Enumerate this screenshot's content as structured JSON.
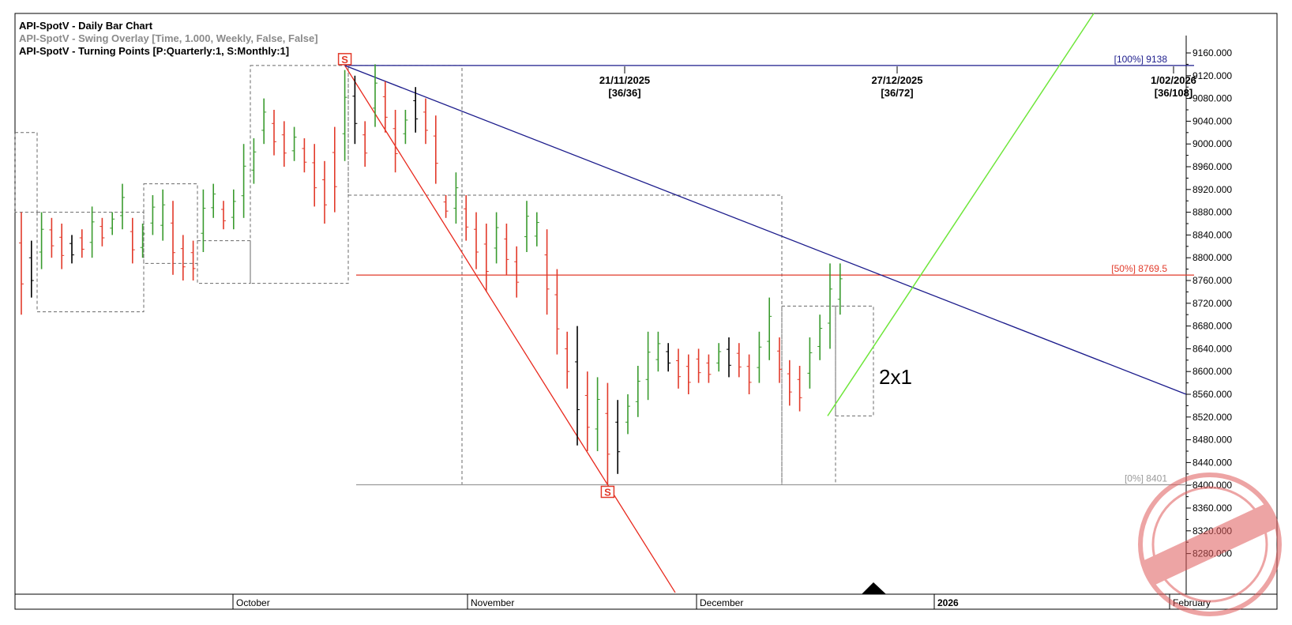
{
  "header": {
    "line1": "API-SpotV - Daily Bar Chart",
    "line2": "API-SpotV - Swing Overlay [Time, 1.000, Weekly, False, False]",
    "line3": "API-SpotV - Turning Points [P:Quarterly:1, S:Monthly:1]"
  },
  "colors": {
    "up": "#3a9b2e",
    "down": "#e23a2a",
    "neutral": "#000000",
    "trend_blue": "#1c1c8c",
    "trend_red": "#e8281c",
    "gann_green": "#6ee63a",
    "grid": "#c8c8c8"
  },
  "chart_data": {
    "type": "ohlc",
    "ylim": [
      8240,
      9190
    ],
    "y_ticks": [
      "9160.000",
      "9120.000",
      "9080.000",
      "9040.000",
      "9000.000",
      "8960.000",
      "8920.000",
      "8880.000",
      "8840.000",
      "8800.000",
      "8760.000",
      "8720.000",
      "8680.000",
      "8640.000",
      "8600.000",
      "8560.000",
      "8520.000",
      "8480.000",
      "8440.000",
      "8400.000",
      "8360.000",
      "8320.000",
      "8280.000"
    ],
    "months": [
      "October",
      "November",
      "December",
      "2026",
      "February"
    ],
    "retracements": [
      {
        "label": "[100%] 9138",
        "value": 9138,
        "color": "#1c1c8c"
      },
      {
        "label": "[50%] 8769.5",
        "value": 8769.5,
        "color": "#e23a2a"
      },
      {
        "label": "[0%] 8401",
        "value": 8401,
        "color": "#9a9a9a"
      }
    ],
    "cycle_dates": [
      {
        "date": "21/11/2025",
        "count": "[36/36]"
      },
      {
        "date": "27/12/2025",
        "count": "[36/72]"
      },
      {
        "date": "1/02/2026",
        "count": "[36/108]"
      }
    ],
    "swing_marker": "S",
    "annotation": "2x1",
    "bars": [
      {
        "h": 8880,
        "l": 8700,
        "c": "r"
      },
      {
        "h": 8830,
        "l": 8730,
        "c": "k"
      },
      {
        "h": 8880,
        "l": 8780,
        "c": "g"
      },
      {
        "h": 8870,
        "l": 8800,
        "c": "r"
      },
      {
        "h": 8860,
        "l": 8780,
        "c": "r"
      },
      {
        "h": 8840,
        "l": 8790,
        "c": "k"
      },
      {
        "h": 8850,
        "l": 8800,
        "c": "r"
      },
      {
        "h": 8890,
        "l": 8800,
        "c": "g"
      },
      {
        "h": 8870,
        "l": 8820,
        "c": "r"
      },
      {
        "h": 8880,
        "l": 8840,
        "c": "g"
      },
      {
        "h": 8930,
        "l": 8850,
        "c": "g"
      },
      {
        "h": 8870,
        "l": 8790,
        "c": "r"
      },
      {
        "h": 8860,
        "l": 8800,
        "c": "g"
      },
      {
        "h": 8910,
        "l": 8840,
        "c": "g"
      },
      {
        "h": 8920,
        "l": 8830,
        "c": "g"
      },
      {
        "h": 8900,
        "l": 8770,
        "c": "r"
      },
      {
        "h": 8840,
        "l": 8760,
        "c": "r"
      },
      {
        "h": 8830,
        "l": 8760,
        "c": "r"
      },
      {
        "h": 8920,
        "l": 8810,
        "c": "g"
      },
      {
        "h": 8930,
        "l": 8870,
        "c": "g"
      },
      {
        "h": 8900,
        "l": 8850,
        "c": "r"
      },
      {
        "h": 8920,
        "l": 8850,
        "c": "g"
      },
      {
        "h": 9000,
        "l": 8870,
        "c": "g"
      },
      {
        "h": 9010,
        "l": 8930,
        "c": "g"
      },
      {
        "h": 9080,
        "l": 9000,
        "c": "g"
      },
      {
        "h": 9060,
        "l": 8980,
        "c": "r"
      },
      {
        "h": 9040,
        "l": 8960,
        "c": "r"
      },
      {
        "h": 9030,
        "l": 8970,
        "c": "g"
      },
      {
        "h": 9010,
        "l": 8950,
        "c": "r"
      },
      {
        "h": 9000,
        "l": 8890,
        "c": "r"
      },
      {
        "h": 8970,
        "l": 8860,
        "c": "r"
      },
      {
        "h": 9030,
        "l": 8880,
        "c": "r"
      },
      {
        "h": 9130,
        "l": 8970,
        "c": "g"
      },
      {
        "h": 9120,
        "l": 9000,
        "c": "k"
      },
      {
        "h": 9040,
        "l": 8960,
        "c": "r"
      },
      {
        "h": 9140,
        "l": 9030,
        "c": "g"
      },
      {
        "h": 9110,
        "l": 9020,
        "c": "r"
      },
      {
        "h": 9060,
        "l": 8950,
        "c": "r"
      },
      {
        "h": 9060,
        "l": 9000,
        "c": "g"
      },
      {
        "h": 9100,
        "l": 9020,
        "c": "k"
      },
      {
        "h": 9080,
        "l": 9000,
        "c": "r"
      },
      {
        "h": 9050,
        "l": 8930,
        "c": "r"
      },
      {
        "h": 8910,
        "l": 8870,
        "c": "r"
      },
      {
        "h": 8950,
        "l": 8860,
        "c": "g"
      },
      {
        "h": 8910,
        "l": 8830,
        "c": "r"
      },
      {
        "h": 8880,
        "l": 8780,
        "c": "r"
      },
      {
        "h": 8860,
        "l": 8740,
        "c": "r"
      },
      {
        "h": 8880,
        "l": 8790,
        "c": "g"
      },
      {
        "h": 8860,
        "l": 8770,
        "c": "r"
      },
      {
        "h": 8820,
        "l": 8730,
        "c": "r"
      },
      {
        "h": 8900,
        "l": 8810,
        "c": "g"
      },
      {
        "h": 8880,
        "l": 8820,
        "c": "g"
      },
      {
        "h": 8850,
        "l": 8700,
        "c": "r"
      },
      {
        "h": 8780,
        "l": 8630,
        "c": "r"
      },
      {
        "h": 8670,
        "l": 8570,
        "c": "r"
      },
      {
        "h": 8680,
        "l": 8470,
        "c": "k"
      },
      {
        "h": 8600,
        "l": 8460,
        "c": "r"
      },
      {
        "h": 8590,
        "l": 8460,
        "c": "g"
      },
      {
        "h": 8580,
        "l": 8401,
        "c": "r"
      },
      {
        "h": 8550,
        "l": 8420,
        "c": "k"
      },
      {
        "h": 8560,
        "l": 8490,
        "c": "g"
      },
      {
        "h": 8610,
        "l": 8520,
        "c": "g"
      },
      {
        "h": 8670,
        "l": 8550,
        "c": "g"
      },
      {
        "h": 8670,
        "l": 8600,
        "c": "g"
      },
      {
        "h": 8650,
        "l": 8600,
        "c": "k"
      },
      {
        "h": 8640,
        "l": 8570,
        "c": "r"
      },
      {
        "h": 8630,
        "l": 8560,
        "c": "r"
      },
      {
        "h": 8640,
        "l": 8580,
        "c": "r"
      },
      {
        "h": 8630,
        "l": 8580,
        "c": "r"
      },
      {
        "h": 8650,
        "l": 8600,
        "c": "g"
      },
      {
        "h": 8660,
        "l": 8590,
        "c": "k"
      },
      {
        "h": 8650,
        "l": 8590,
        "c": "r"
      },
      {
        "h": 8630,
        "l": 8560,
        "c": "r"
      },
      {
        "h": 8670,
        "l": 8580,
        "c": "g"
      },
      {
        "h": 8730,
        "l": 8620,
        "c": "g"
      },
      {
        "h": 8660,
        "l": 8580,
        "c": "r"
      },
      {
        "h": 8620,
        "l": 8540,
        "c": "r"
      },
      {
        "h": 8610,
        "l": 8530,
        "c": "r"
      },
      {
        "h": 8660,
        "l": 8570,
        "c": "g"
      },
      {
        "h": 8700,
        "l": 8620,
        "c": "g"
      },
      {
        "h": 8790,
        "l": 8640,
        "c": "g"
      },
      {
        "h": 8790,
        "l": 8700,
        "c": "g"
      }
    ]
  }
}
